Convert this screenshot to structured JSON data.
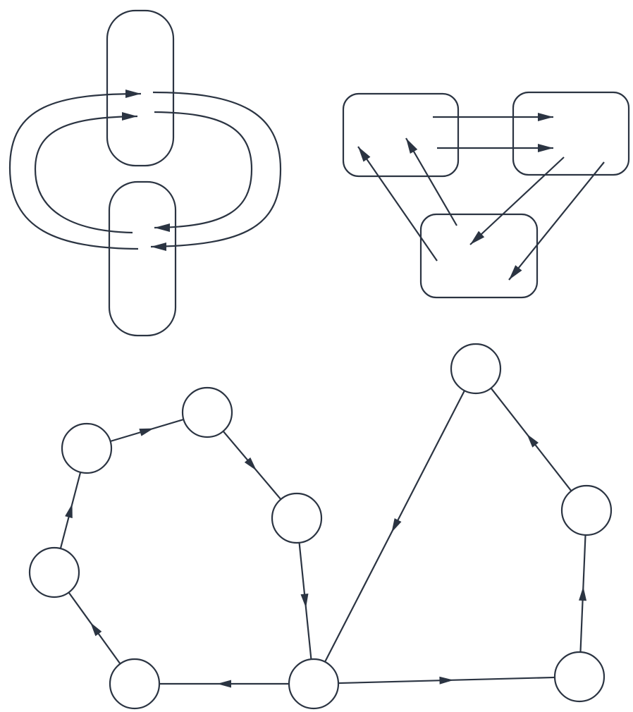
{
  "diagram": {
    "stroke_color": "#2b3442",
    "background_color": "#ffffff",
    "panels": [
      {
        "id": "interlocked-loops",
        "shapes": 2,
        "arrows": 4
      },
      {
        "id": "three-box-flow",
        "shapes": 3,
        "arrows": 6
      },
      {
        "id": "directed-cycle-graph",
        "nodes": 9,
        "edges": 10
      }
    ]
  }
}
